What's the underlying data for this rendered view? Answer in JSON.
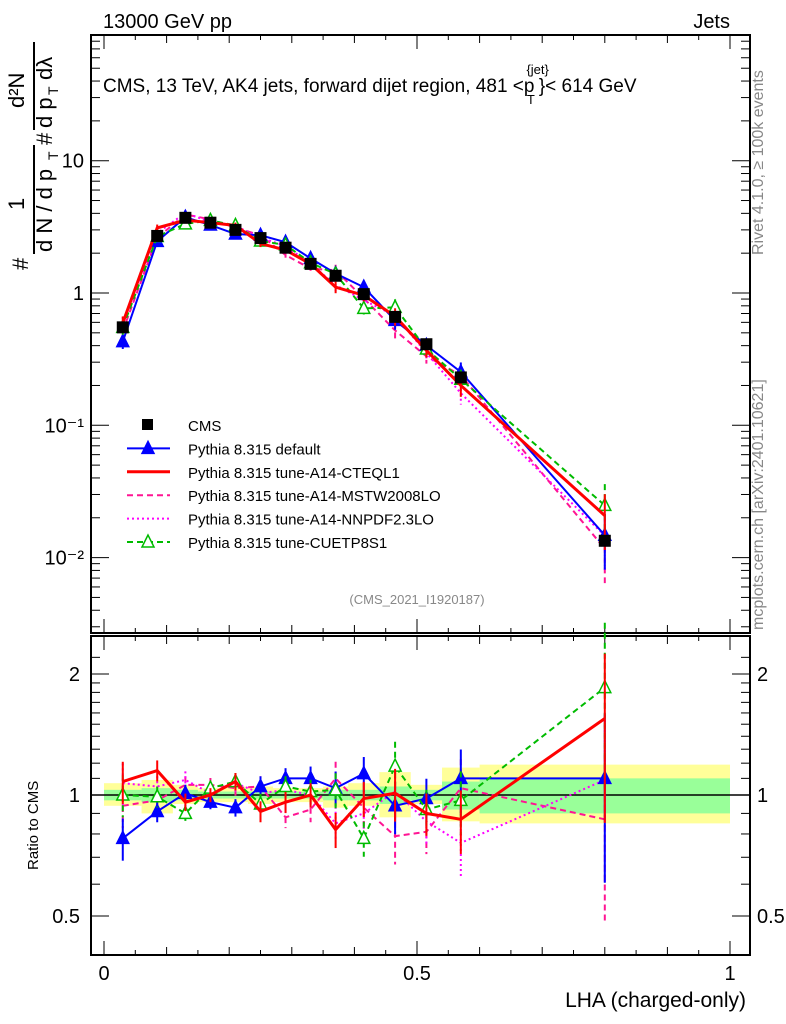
{
  "chart_data": {
    "type": "line",
    "top_left_label": "13000 GeV pp",
    "top_right_label": "Jets",
    "title": "CMS, 13 TeV, AK4 jets, forward dijet region, 481 <p",
    "title_sup": "{jet}",
    "title_sub": "T",
    "title_end": "}< 614 GeV",
    "side_label_1": "Rivet 4.1.0, ≥ 100k events",
    "side_label_2": "mcplots.cern.ch [arXiv:2401.10621]",
    "analysis_label": "(CMS_2021_I1920187)",
    "xlabel": "LHA (charged-only)",
    "ylabel_parts": [
      "#",
      "1",
      "d N / d p",
      "T",
      "#",
      "d²N",
      "d p",
      "T",
      " dλ"
    ],
    "ratio_ylabel": "Ratio to CMS",
    "xlim": [
      0,
      1
    ],
    "ylim": [
      0.0027,
      90
    ],
    "ratio_ylim": [
      0.4,
      2.4
    ],
    "yscale": "log",
    "x_ticks": [
      "0",
      "0.5",
      "1"
    ],
    "y_ticks": [
      "10⁻²",
      "10⁻¹",
      "1",
      "10"
    ],
    "ratio_ticks": [
      "0.5",
      "1",
      "2"
    ],
    "legend_position": "bottom-left",
    "bin_edges": [
      0,
      0.06,
      0.11,
      0.15,
      0.19,
      0.23,
      0.27,
      0.31,
      0.35,
      0.39,
      0.44,
      0.49,
      0.54,
      0.6,
      1.0
    ],
    "x": [
      0.03,
      0.085,
      0.13,
      0.17,
      0.21,
      0.25,
      0.29,
      0.33,
      0.37,
      0.415,
      0.465,
      0.515,
      0.57,
      0.8
    ],
    "data": {
      "name": "CMS",
      "values": [
        0.55,
        2.7,
        3.7,
        3.4,
        3.0,
        2.6,
        2.2,
        1.66,
        1.35,
        0.98,
        0.66,
        0.41,
        0.23,
        0.0134
      ],
      "band_total_up": [
        1.07,
        1.09,
        1.06,
        1.04,
        1.05,
        1.05,
        1.04,
        1.04,
        1.05,
        1.07,
        1.14,
        1.06,
        1.17,
        1.19
      ],
      "band_total_down": [
        0.94,
        0.9,
        0.95,
        0.96,
        0.96,
        0.95,
        0.96,
        0.96,
        0.93,
        0.94,
        0.88,
        0.95,
        0.86,
        0.85
      ],
      "band_stat": [
        0.03,
        0.04,
        0.03,
        0.02,
        0.02,
        0.02,
        0.02,
        0.02,
        0.03,
        0.03,
        0.05,
        0.03,
        0.08,
        0.1
      ]
    },
    "model_rel_error": [
      0.12,
      0.06,
      0.05,
      0.04,
      0.05,
      0.06,
      0.06,
      0.07,
      0.1,
      0.1,
      0.15,
      0.12,
      0.18,
      0.45
    ],
    "series": [
      {
        "name": "Pythia 8.315 default",
        "color": "#0000ff",
        "dash": "",
        "marker": "triangle-filled",
        "ratio": [
          0.78,
          0.91,
          1.01,
          0.96,
          0.93,
          1.05,
          1.1,
          1.1,
          1.04,
          1.13,
          0.94,
          0.98,
          1.1,
          1.1
        ]
      },
      {
        "name": "Pythia 8.315 tune-A14-CTEQL1",
        "color": "#ff0000",
        "dash": "",
        "marker": "none",
        "ratio": [
          1.08,
          1.15,
          0.96,
          1.0,
          1.08,
          0.91,
          0.96,
          1.0,
          0.82,
          0.98,
          1.01,
          0.9,
          0.87,
          1.55
        ]
      },
      {
        "name": "Pythia 8.315 tune-A14-MSTW2008LO",
        "color": "#ff1493",
        "dash": "dashed",
        "marker": "none",
        "ratio": [
          0.94,
          0.97,
          1.06,
          1.06,
          1.04,
          1.05,
          0.88,
          0.92,
          1.1,
          0.93,
          0.79,
          0.81,
          1.04,
          0.87
        ]
      },
      {
        "name": "Pythia 8.315 tune-A14-NNPDF2.3LO",
        "color": "#ff00ff",
        "dash": "dotted",
        "marker": "none",
        "ratio": [
          1.07,
          1.05,
          1.09,
          1.01,
          1.07,
          1.01,
          1.03,
          1.0,
          0.85,
          0.9,
          1.02,
          0.86,
          0.76,
          1.09
        ]
      },
      {
        "name": "Pythia 8.315 tune-CUETP8S1",
        "color": "#00bb00",
        "dash": "dashed",
        "marker": "triangle-open",
        "ratio": [
          1.0,
          0.99,
          0.9,
          1.04,
          1.08,
          0.95,
          1.05,
          1.02,
          1.03,
          0.78,
          1.18,
          0.92,
          0.97,
          1.85
        ]
      }
    ]
  }
}
